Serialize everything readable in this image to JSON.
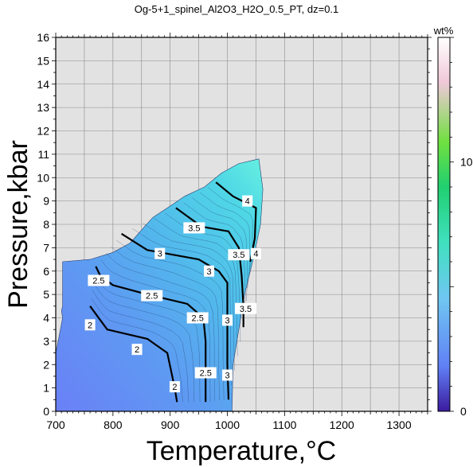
{
  "chart_data": {
    "type": "contour",
    "title": "Og-5+1_spinel_Al2O3_H2O_0.5_PT, dz=0.1",
    "xlabel": "Temperature,°C",
    "ylabel": "Pressure,kbar",
    "xlim": [
      700,
      1350
    ],
    "ylim": [
      0,
      16
    ],
    "x_ticks": [
      700,
      800,
      900,
      1000,
      1100,
      1200,
      1300
    ],
    "y_ticks": [
      0,
      1,
      2,
      3,
      4,
      5,
      6,
      7,
      8,
      9,
      10,
      11,
      12,
      13,
      14,
      15,
      16
    ],
    "grid": true,
    "background_color": "#e2e2e2",
    "field_domain": [
      [
        700,
        0
      ],
      [
        700,
        2.5
      ],
      [
        705,
        3.1
      ],
      [
        712,
        4.0
      ],
      [
        710,
        4.3
      ],
      [
        712,
        4.5
      ],
      [
        712,
        6.4
      ],
      [
        760,
        6.5
      ],
      [
        800,
        6.8
      ],
      [
        830,
        7.2
      ],
      [
        855,
        7.9
      ],
      [
        870,
        8.3
      ],
      [
        895,
        8.7
      ],
      [
        925,
        9.2
      ],
      [
        960,
        9.6
      ],
      [
        990,
        10.2
      ],
      [
        1020,
        10.6
      ],
      [
        1055,
        10.8
      ],
      [
        1062,
        9.5
      ],
      [
        1058,
        8.0
      ],
      [
        1045,
        6.5
      ],
      [
        1030,
        5.0
      ],
      [
        1020,
        3.5
      ],
      [
        1010,
        2.0
      ],
      [
        1008,
        0
      ]
    ],
    "major_contours": [
      {
        "level": 2,
        "points": [
          [
            760,
            4.5
          ],
          [
            790,
            3.5
          ],
          [
            860,
            3.1
          ],
          [
            895,
            2.5
          ],
          [
            908,
            1.0
          ],
          [
            912,
            0.4
          ]
        ],
        "labels": [
          {
            "text": "2",
            "x": 760,
            "y": 3.7
          },
          {
            "text": "2",
            "x": 842,
            "y": 2.65
          },
          {
            "text": "2",
            "x": 908,
            "y": 1.05
          }
        ]
      },
      {
        "level": 2.5,
        "points": [
          [
            770,
            6.2
          ],
          [
            778,
            5.8
          ],
          [
            800,
            5.4
          ],
          [
            860,
            5.0
          ],
          [
            930,
            4.6
          ],
          [
            958,
            4.0
          ],
          [
            962,
            3.0
          ],
          [
            962,
            2.0
          ],
          [
            962,
            0.4
          ]
        ],
        "labels": [
          {
            "text": "2.5",
            "x": 775,
            "y": 5.6
          },
          {
            "text": "2.5",
            "x": 868,
            "y": 4.95
          },
          {
            "text": "2.5",
            "x": 948,
            "y": 4.0
          },
          {
            "text": "2.5",
            "x": 962,
            "y": 1.65
          }
        ]
      },
      {
        "level": 3,
        "points": [
          [
            815,
            7.6
          ],
          [
            860,
            6.9
          ],
          [
            950,
            6.5
          ],
          [
            985,
            6.0
          ],
          [
            1000,
            5.5
          ],
          [
            1000,
            3.5
          ],
          [
            1000,
            2.0
          ],
          [
            1002,
            0.5
          ]
        ],
        "labels": [
          {
            "text": "3",
            "x": 882,
            "y": 6.75
          },
          {
            "text": "3",
            "x": 968,
            "y": 6.0
          },
          {
            "text": "3",
            "x": 1000,
            "y": 3.9
          },
          {
            "text": "3",
            "x": 1000,
            "y": 1.55
          }
        ]
      },
      {
        "level": 3.5,
        "points": [
          [
            910,
            8.7
          ],
          [
            955,
            7.9
          ],
          [
            1002,
            7.7
          ],
          [
            1020,
            7.0
          ],
          [
            1025,
            5.8
          ],
          [
            1028,
            4.5
          ],
          [
            1028,
            3.6
          ]
        ],
        "labels": [
          {
            "text": "3.5",
            "x": 942,
            "y": 7.85
          },
          {
            "text": "3.5",
            "x": 1020,
            "y": 6.7
          },
          {
            "text": "3.5",
            "x": 1032,
            "y": 4.4
          }
        ]
      },
      {
        "level": 4,
        "points": [
          [
            980,
            9.8
          ],
          [
            1010,
            9.2
          ],
          [
            1050,
            8.7
          ],
          [
            1048,
            7.4
          ],
          [
            1040,
            6.4
          ]
        ],
        "labels": [
          {
            "text": "4",
            "x": 1035,
            "y": 9.0
          },
          {
            "text": "4",
            "x": 1050,
            "y": 6.75
          }
        ]
      }
    ],
    "colorbar": {
      "label": "wt%",
      "range": [
        0,
        15
      ],
      "ticks": [
        0,
        10
      ],
      "stops": [
        "#3b1a9e",
        "#6080f5",
        "#70c6f2",
        "#40e0c0",
        "#20d070",
        "#70e040",
        "#f0c8d8",
        "#ffffff"
      ]
    }
  }
}
